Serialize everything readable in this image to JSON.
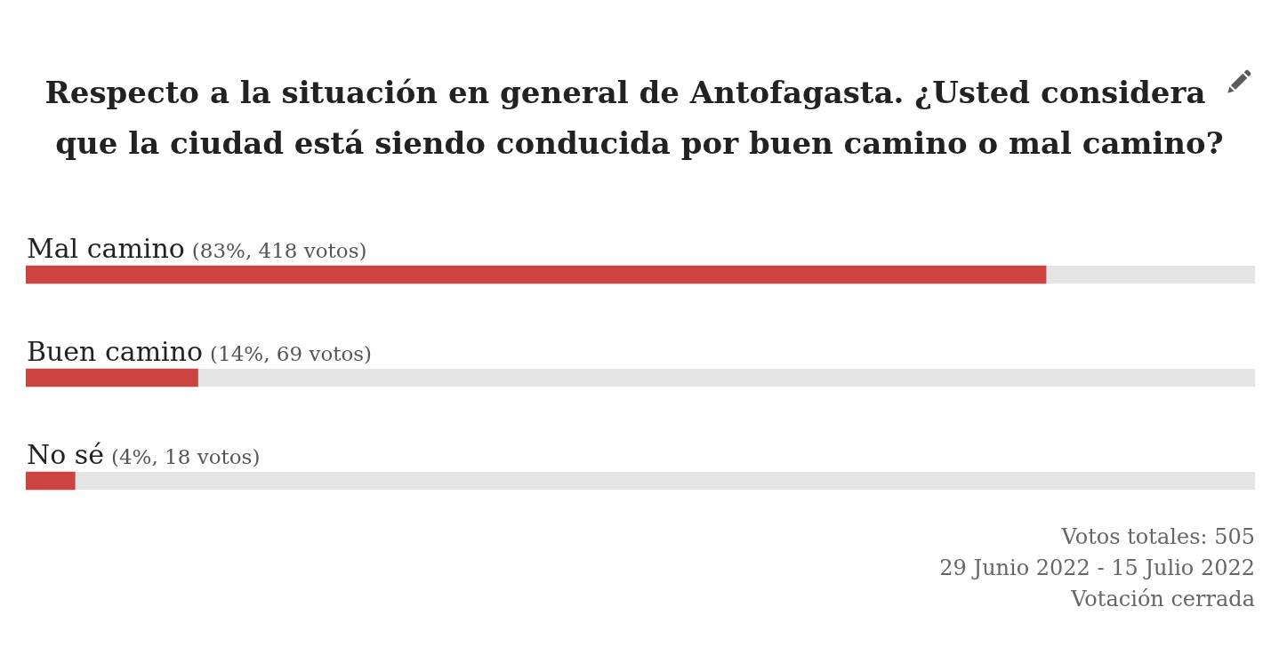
{
  "chart_data": {
    "type": "bar",
    "orientation": "horizontal",
    "title": "Respecto a la situación en general de Antofagasta. ¿Usted considera que la ciudad está siendo conducida por buen camino o mal camino?",
    "categories": [
      "Mal camino",
      "Buen camino",
      "No sé"
    ],
    "values": [
      83,
      14,
      4
    ],
    "value_labels": [
      "(83%, 418 votos)",
      "(14%, 69 votos)",
      "(4%, 18 votos)"
    ],
    "color": "#cc4340",
    "xlim": [
      0,
      100
    ],
    "tick_labels": "y",
    "legend": false,
    "annotations": [
      "Votos totales: 505",
      "29 Junio 2022 - 15 Julio 2022",
      "Votación cerrada"
    ]
  }
}
